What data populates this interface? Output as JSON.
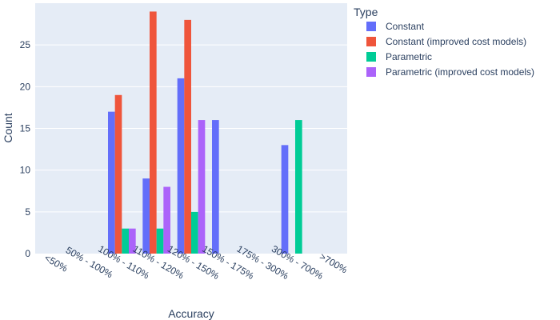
{
  "chart_data": {
    "type": "bar",
    "title": "",
    "xlabel": "Accuracy",
    "ylabel": "Count",
    "ylim": [
      0,
      30
    ],
    "yticks": [
      0,
      5,
      10,
      15,
      20,
      25
    ],
    "grid": true,
    "legend_title": "Type",
    "legend_position": "top-right",
    "categories": [
      "<50%",
      "50% - 100%",
      "100% - 110%",
      "110% - 120%",
      "120% - 150%",
      "150% - 175%",
      "175% - 300%",
      "300% - 700%",
      ">700%"
    ],
    "series": [
      {
        "name": "Constant",
        "color": "#636efa",
        "values": [
          0,
          0,
          17,
          9,
          21,
          16,
          0,
          13,
          0
        ]
      },
      {
        "name": "Constant (improved cost models)",
        "color": "#ef553b",
        "values": [
          0,
          0,
          19,
          29,
          28,
          0,
          0,
          0,
          0
        ]
      },
      {
        "name": "Parametric",
        "color": "#00cc96",
        "values": [
          0,
          0,
          3,
          3,
          5,
          0,
          0,
          16,
          0
        ]
      },
      {
        "name": "Parametric (improved cost models)",
        "color": "#ab63fa",
        "values": [
          0,
          0,
          3,
          8,
          16,
          0,
          0,
          0,
          0
        ]
      }
    ]
  }
}
